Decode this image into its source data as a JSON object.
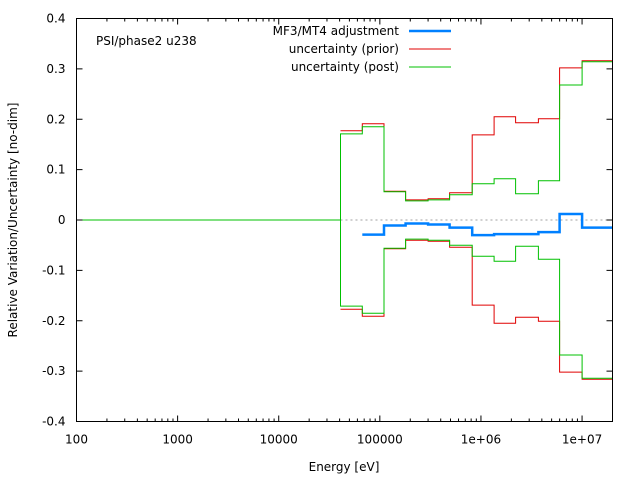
{
  "chart_data": {
    "type": "line",
    "style": "step",
    "title": "",
    "annotation": "PSI/phase2 u238",
    "xlabel": "Energy [eV]",
    "ylabel": "Relative Variation/Uncertainty [no-dim]",
    "xscale": "log",
    "xlim": [
      100,
      20000000
    ],
    "ylim": [
      -0.4,
      0.4
    ],
    "grid": false,
    "legend_position": "top-right",
    "x_ticks": [
      {
        "value": 100,
        "label": "100"
      },
      {
        "value": 1000,
        "label": "1000"
      },
      {
        "value": 10000,
        "label": "10000"
      },
      {
        "value": 100000,
        "label": "100000"
      },
      {
        "value": 1000000,
        "label": "1e+06"
      },
      {
        "value": 10000000,
        "label": "1e+07"
      }
    ],
    "y_ticks": [
      {
        "value": 0.4,
        "label": "0.4"
      },
      {
        "value": 0.3,
        "label": "0.3"
      },
      {
        "value": 0.2,
        "label": "0.2"
      },
      {
        "value": 0.1,
        "label": "0.1"
      },
      {
        "value": 0,
        "label": "0"
      },
      {
        "value": -0.1,
        "label": "-0.1"
      },
      {
        "value": -0.2,
        "label": "-0.2"
      },
      {
        "value": -0.3,
        "label": "-0.3"
      },
      {
        "value": -0.4,
        "label": "-0.4"
      }
    ],
    "zero_line": {
      "style": "dotted",
      "from": 40800,
      "color": "#a0a0a0"
    },
    "series": [
      {
        "name": "MF3/MT4 adjustment",
        "color": "#0080ff",
        "bins": [
          67000,
          110000,
          180000,
          300000,
          490000,
          820000,
          1350000,
          2200000,
          3700000,
          6000000,
          10000000,
          20000000
        ],
        "values": [
          -0.029,
          -0.011,
          -0.007,
          -0.009,
          -0.015,
          -0.03,
          -0.028,
          -0.028,
          -0.024,
          0.012,
          -0.015
        ],
        "mirror": false
      },
      {
        "name": "uncertainty (prior)",
        "color": "#e00000",
        "bins": [
          40800,
          67000,
          110000,
          180000,
          300000,
          490000,
          820000,
          1350000,
          2200000,
          3700000,
          6000000,
          10000000,
          20000000
        ],
        "values": [
          0.177,
          0.191,
          0.057,
          0.04,
          0.042,
          0.054,
          0.169,
          0.205,
          0.193,
          0.201,
          0.302,
          0.316
        ],
        "mirror": true
      },
      {
        "name": "uncertainty (post)",
        "color": "#00c000",
        "bins": [
          100,
          40800,
          67000,
          110000,
          180000,
          300000,
          490000,
          820000,
          1350000,
          2200000,
          3700000,
          6000000,
          10000000,
          20000000
        ],
        "values": [
          0,
          0.171,
          0.185,
          0.056,
          0.038,
          0.04,
          0.05,
          0.072,
          0.082,
          0.052,
          0.078,
          0.268,
          0.314
        ],
        "mirror": true
      }
    ]
  }
}
